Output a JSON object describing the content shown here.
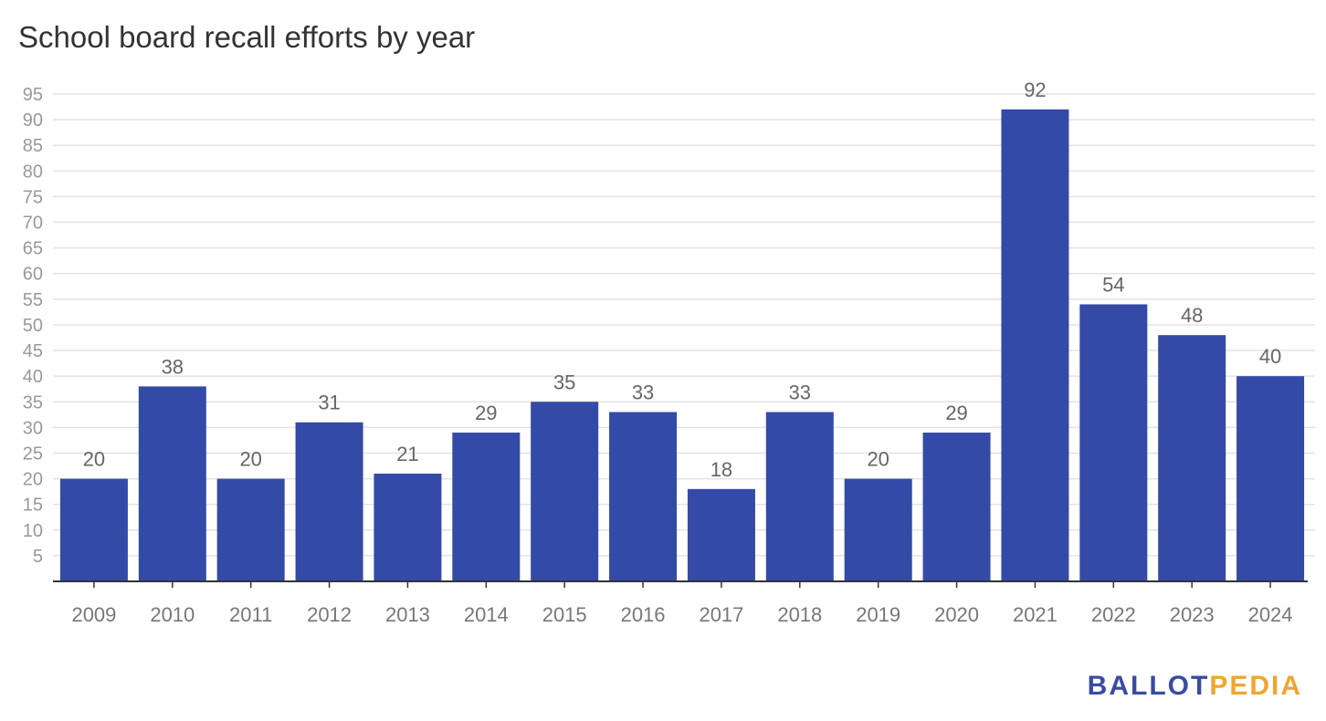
{
  "chart_data": {
    "type": "bar",
    "title": "School board recall efforts by year",
    "xlabel": "",
    "ylabel": "",
    "categories": [
      "2009",
      "2010",
      "2011",
      "2012",
      "2013",
      "2014",
      "2015",
      "2016",
      "2017",
      "2018",
      "2019",
      "2020",
      "2021",
      "2022",
      "2023",
      "2024"
    ],
    "values": [
      20,
      38,
      20,
      31,
      21,
      29,
      35,
      33,
      18,
      33,
      20,
      29,
      92,
      54,
      48,
      40
    ],
    "ylim": [
      0,
      95
    ],
    "yticks": [
      5,
      10,
      15,
      20,
      25,
      30,
      35,
      40,
      45,
      50,
      55,
      60,
      65,
      70,
      75,
      80,
      85,
      90,
      95
    ],
    "grid": true,
    "data_labels": true,
    "legend": "none"
  },
  "colors": {
    "bar": "#344aa7",
    "grid": "#e3e3e3",
    "axis": "#333333",
    "tick_label": "#999999",
    "data_label": "#666666",
    "x_label": "#777777"
  },
  "branding": {
    "logo_part1": "BALLOT",
    "logo_part2": "PEDIA"
  }
}
